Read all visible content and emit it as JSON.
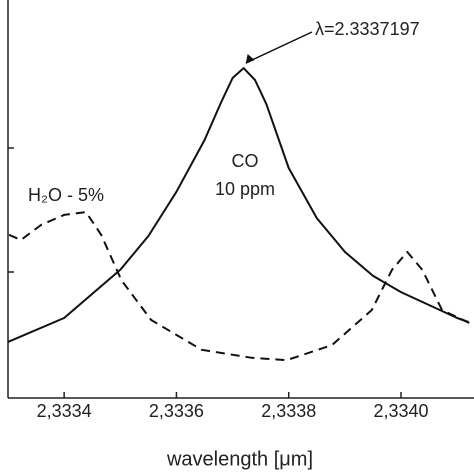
{
  "chart_data": {
    "type": "line",
    "xlabel": "wavelength [μm]",
    "xlim": [
      2.3333,
      2.33413
    ],
    "xticks": [
      {
        "value": 2.3334,
        "label": "2,3334"
      },
      {
        "value": 2.3336,
        "label": "2,3336"
      },
      {
        "value": 2.3338,
        "label": "2,3338"
      },
      {
        "value": 2.334,
        "label": "2,3340"
      }
    ],
    "ylim": [
      0,
      100
    ],
    "series": [
      {
        "name": "CO",
        "color": "#111111",
        "style": "solid",
        "x": [
          2.3333,
          2.3334,
          2.3335,
          2.33355,
          2.3336,
          2.33365,
          2.33368,
          2.3337,
          2.3337197,
          2.33374,
          2.33376,
          2.3338,
          2.33385,
          2.3339,
          2.33395,
          2.334,
          2.3341,
          2.33412
        ],
        "values": [
          14.1,
          20.1,
          32.2,
          40.7,
          51.8,
          64.8,
          74.4,
          80.4,
          82.9,
          79.9,
          73.9,
          57.8,
          45.2,
          36.7,
          30.7,
          26.6,
          20.1,
          19.1
        ]
      },
      {
        "name": "H₂O",
        "color": "#111111",
        "style": "dashed",
        "x": [
          2.333302,
          2.333323,
          2.333359,
          2.3334,
          2.333439,
          2.333466,
          2.333502,
          2.333555,
          2.333645,
          2.333734,
          2.333796,
          2.333877,
          2.333948,
          2.333984,
          2.334011,
          2.334038,
          2.334073,
          2.33413
        ],
        "values": [
          41.0,
          39.7,
          43.5,
          46.0,
          46.7,
          41.0,
          29.6,
          19.6,
          12.1,
          10.1,
          9.5,
          13.3,
          22.1,
          32.2,
          36.7,
          32.2,
          22.1,
          18.3
        ]
      }
    ],
    "annotations": [
      {
        "text": "λ=2.3337197",
        "x": 2.3337197,
        "y": 82.9
      },
      {
        "text": "CO"
      },
      {
        "text": "10 ppm"
      },
      {
        "text": "H₂O - 5%"
      }
    ]
  }
}
